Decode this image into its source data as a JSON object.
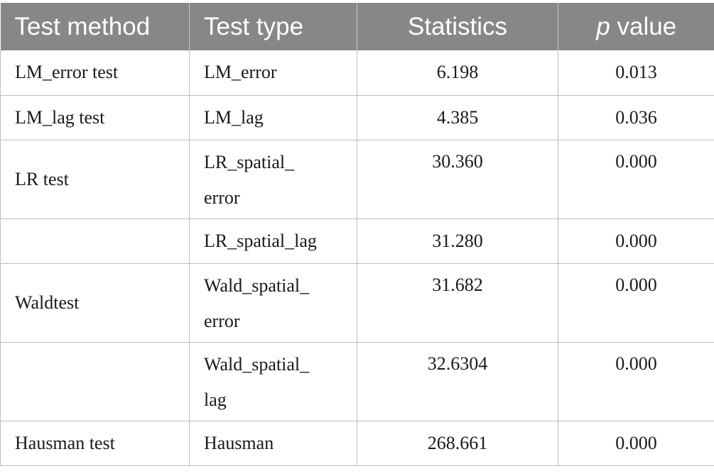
{
  "table": {
    "headers": {
      "method": "Test method",
      "type": "Test type",
      "statistics": "Statistics",
      "p_italic": "p",
      "p_rest": " value"
    },
    "rows": [
      {
        "method": "LM_error test",
        "type_line1": "LM_error",
        "type_line2": "",
        "statistics": "6.198",
        "p_value": "0.013"
      },
      {
        "method": "LM_lag test",
        "type_line1": "LM_lag",
        "type_line2": "",
        "statistics": "4.385",
        "p_value": "0.036"
      },
      {
        "method": "LR test",
        "type_line1": "LR_spatial_",
        "type_line2": "error",
        "statistics": "30.360",
        "p_value": "0.000"
      },
      {
        "method": "",
        "type_line1": "LR_spatial_lag",
        "type_line2": "",
        "statistics": "31.280",
        "p_value": "0.000"
      },
      {
        "method": "Waldtest",
        "type_line1": "Wald_spatial_",
        "type_line2": "error",
        "statistics": "31.682",
        "p_value": "0.000"
      },
      {
        "method": "",
        "type_line1": "Wald_spatial_",
        "type_line2": "lag",
        "statistics": "32.6304",
        "p_value": "0.000"
      },
      {
        "method": "Hausman test",
        "type_line1": "Hausman",
        "type_line2": "",
        "statistics": "268.661",
        "p_value": "0.000"
      }
    ]
  }
}
